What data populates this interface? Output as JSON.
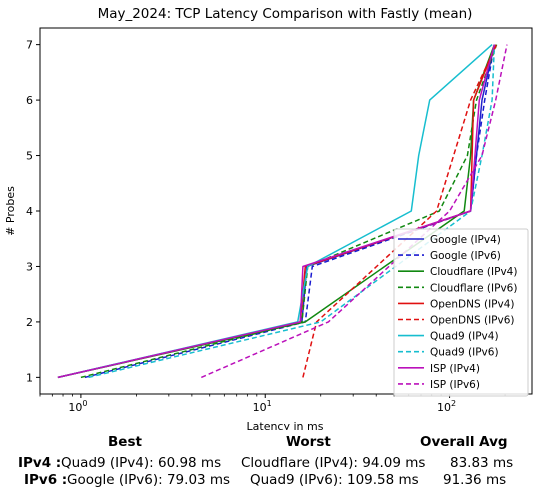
{
  "chart_data": {
    "type": "line",
    "title": "May_2024: TCP Latency Comparison with Fastly (mean)",
    "xlabel": "Latency in ms",
    "ylabel": "# Probes",
    "xscale": "log",
    "xlim": [
      0.6,
      280
    ],
    "ylim": [
      0.7,
      7.3
    ],
    "x_ticks": [
      {
        "v": 1,
        "label": "10^0"
      },
      {
        "v": 10,
        "label": "10^1"
      },
      {
        "v": 100,
        "label": "10^2"
      }
    ],
    "y_ticks": [
      1,
      2,
      3,
      4,
      5,
      6,
      7
    ],
    "grid": false,
    "legend": "lower-right",
    "series": [
      {
        "name": "Google (IPv4)",
        "color": "#2222cc",
        "dash": "solid",
        "points": [
          [
            0.75,
            1
          ],
          [
            15.8,
            2
          ],
          [
            16.8,
            3
          ],
          [
            130,
            4
          ],
          [
            140,
            5
          ],
          [
            150,
            6
          ],
          [
            175,
            7
          ]
        ]
      },
      {
        "name": "Google (IPv6)",
        "color": "#1a1ad0",
        "dash": "dashed",
        "points": [
          [
            1.05,
            1
          ],
          [
            16.5,
            2
          ],
          [
            18,
            3
          ],
          [
            130,
            4
          ],
          [
            140,
            5
          ],
          [
            155,
            6
          ],
          [
            175,
            7
          ]
        ]
      },
      {
        "name": "Cloudflare (IPv4)",
        "color": "#118811",
        "dash": "solid",
        "points": [
          [
            0.75,
            1
          ],
          [
            16.5,
            2
          ],
          [
            120,
            4
          ],
          [
            130,
            5
          ],
          [
            135,
            6
          ],
          [
            175,
            7
          ]
        ]
      },
      {
        "name": "Cloudflare (IPv6)",
        "color": "#118811",
        "dash": "dashed",
        "points": [
          [
            1.0,
            1
          ],
          [
            15.8,
            2
          ],
          [
            17,
            3
          ],
          [
            88,
            4
          ],
          [
            125,
            5
          ],
          [
            140,
            6
          ],
          [
            180,
            7
          ]
        ]
      },
      {
        "name": "OpenDNS (IPv4)",
        "color": "#e01010",
        "dash": "solid",
        "points": [
          [
            0.75,
            1
          ],
          [
            15.5,
            2
          ],
          [
            16.5,
            3
          ],
          [
            130,
            4
          ],
          [
            135,
            6
          ],
          [
            178,
            7
          ]
        ]
      },
      {
        "name": "OpenDNS (IPv6)",
        "color": "#e01010",
        "dash": "dashed",
        "points": [
          [
            16,
            1
          ],
          [
            19,
            2
          ],
          [
            85,
            4
          ],
          [
            130,
            6
          ],
          [
            180,
            7
          ]
        ]
      },
      {
        "name": "Quad9 (IPv4)",
        "color": "#17becf",
        "dash": "solid",
        "points": [
          [
            0.75,
            1
          ],
          [
            15,
            2
          ],
          [
            17,
            3
          ],
          [
            62,
            4
          ],
          [
            68,
            5
          ],
          [
            78,
            6
          ],
          [
            170,
            7
          ]
        ]
      },
      {
        "name": "Quad9 (IPv6)",
        "color": "#17becf",
        "dash": "dashed",
        "points": [
          [
            1.1,
            1
          ],
          [
            20,
            2
          ],
          [
            130,
            4
          ],
          [
            150,
            5
          ],
          [
            170,
            6
          ],
          [
            175,
            7
          ]
        ]
      },
      {
        "name": "ISP (IPv4)",
        "color": "#bb11bb",
        "dash": "solid",
        "points": [
          [
            0.75,
            1
          ],
          [
            15.5,
            2
          ],
          [
            16,
            3
          ],
          [
            130,
            4
          ],
          [
            145,
            6
          ],
          [
            175,
            7
          ]
        ]
      },
      {
        "name": "ISP (IPv6)",
        "color": "#bb11bb",
        "dash": "dashed",
        "points": [
          [
            4.5,
            1
          ],
          [
            22,
            2
          ],
          [
            100,
            4
          ],
          [
            150,
            5
          ],
          [
            178,
            6
          ],
          [
            205,
            7
          ]
        ]
      }
    ]
  },
  "summary": {
    "headers": {
      "best": "Best",
      "worst": "Worst",
      "avg": "Overall Avg"
    },
    "rows": [
      {
        "label": "IPv4 :",
        "best": "Quad9 (IPv4): 60.98 ms",
        "worst": "Cloudflare (IPv4): 94.09 ms",
        "avg": "83.83 ms"
      },
      {
        "label": "IPv6 :",
        "best": "Google (IPv6): 79.03 ms",
        "worst": "Quad9 (IPv6): 109.58 ms",
        "avg": "91.36 ms"
      }
    ]
  }
}
